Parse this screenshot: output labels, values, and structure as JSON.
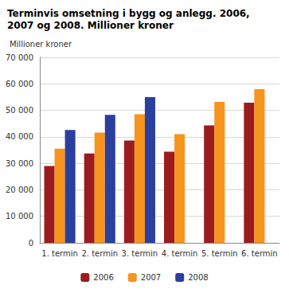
{
  "chart_data": {
    "type": "bar",
    "title": "Terminvis omsetning i bygg og anlegg. 2006, 2007 og 2008. Millioner kroner",
    "y_label": "Millioner kroner",
    "categories": [
      "1. termin",
      "2. termin",
      "3. termin",
      "4. termin",
      "5. termin",
      "6. termin"
    ],
    "series": [
      {
        "name": "2006",
        "color": "#9b1c1f",
        "values": [
          29000,
          33700,
          38600,
          34400,
          44300,
          52900
        ]
      },
      {
        "name": "2007",
        "color": "#f7941d",
        "values": [
          35500,
          41600,
          48500,
          41000,
          53200,
          58000
        ]
      },
      {
        "name": "2008",
        "color": "#2b3f9e",
        "values": [
          42600,
          48300,
          55000,
          null,
          null,
          null
        ]
      }
    ],
    "ylim": [
      0,
      70000
    ],
    "yticks": [
      {
        "value": 0,
        "label": "0"
      },
      {
        "value": 10000,
        "label": "10 000"
      },
      {
        "value": 20000,
        "label": "20 000"
      },
      {
        "value": 30000,
        "label": "30 000"
      },
      {
        "value": 40000,
        "label": "40 000"
      },
      {
        "value": 50000,
        "label": "50 000"
      },
      {
        "value": 60000,
        "label": "60 000"
      },
      {
        "value": 70000,
        "label": "70 000"
      }
    ],
    "grid": true,
    "legend": "bottom"
  }
}
